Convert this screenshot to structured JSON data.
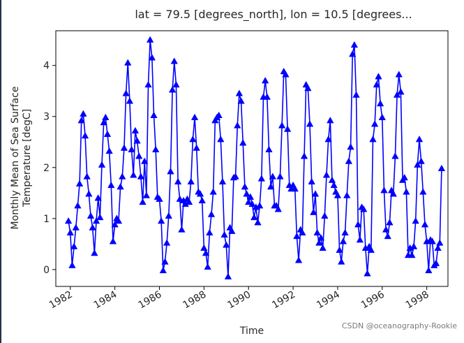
{
  "chart_data": {
    "type": "line",
    "title": "lat = 79.5 [degrees_north], lon = 10.5 [degrees...",
    "xlabel": "Time",
    "ylabel_lines": [
      "Monthly Mean of Sea Surface",
      "Temperature [degC]"
    ],
    "xlim": [
      1981.35,
      1998.95
    ],
    "ylim": [
      -0.33,
      4.68
    ],
    "x_ticks": [
      1982,
      1984,
      1986,
      1988,
      1990,
      1992,
      1994,
      1996,
      1998
    ],
    "x_tick_labels": [
      "1982",
      "1984",
      "1986",
      "1988",
      "1990",
      "1992",
      "1994",
      "1996",
      "1998"
    ],
    "y_ticks": [
      0,
      1,
      2,
      3,
      4
    ],
    "y_tick_labels": [
      "0",
      "1",
      "2",
      "3",
      "4"
    ],
    "series": [
      {
        "name": "sst",
        "color": "#0000ff",
        "marker": "triangle-up",
        "start_year": 1981.9167,
        "step": 0.08333,
        "values": [
          0.95,
          0.72,
          0.08,
          0.45,
          0.82,
          1.25,
          1.68,
          2.92,
          3.05,
          2.62,
          1.82,
          1.48,
          1.05,
          0.82,
          0.32,
          0.95,
          1.4,
          1.02,
          2.05,
          2.88,
          2.98,
          2.65,
          2.32,
          1.65,
          0.55,
          0.88,
          1.0,
          0.95,
          1.62,
          1.82,
          2.38,
          3.45,
          4.05,
          3.3,
          2.35,
          1.85,
          2.72,
          2.52,
          2.22,
          1.82,
          1.32,
          2.12,
          1.45,
          3.62,
          4.5,
          4.15,
          3.02,
          2.35,
          1.42,
          1.38,
          0.95,
          -0.02,
          0.15,
          0.52,
          1.05,
          1.92,
          3.52,
          4.08,
          3.62,
          1.72,
          1.38,
          0.78,
          1.35,
          1.28,
          1.38,
          1.32,
          1.72,
          2.55,
          2.98,
          2.38,
          1.52,
          1.48,
          1.35,
          0.42,
          0.32,
          0.05,
          0.72,
          1.08,
          1.52,
          2.92,
          2.98,
          3.02,
          2.55,
          1.72,
          0.68,
          0.48,
          -0.14,
          0.82,
          0.75,
          1.8,
          1.82,
          2.82,
          3.45,
          3.3,
          2.48,
          1.62,
          1.48,
          1.32,
          1.42,
          1.28,
          1.02,
          1.22,
          0.92,
          1.25,
          1.78,
          3.38,
          3.7,
          3.38,
          2.35,
          1.62,
          1.82,
          1.25,
          1.25,
          1.18,
          1.82,
          2.82,
          3.88,
          3.82,
          2.75,
          1.65,
          1.58,
          1.65,
          1.58,
          0.65,
          0.18,
          0.78,
          0.72,
          2.22,
          3.62,
          3.55,
          2.85,
          1.72,
          1.12,
          1.48,
          0.72,
          0.52,
          0.62,
          0.42,
          1.05,
          1.85,
          2.55,
          2.92,
          1.75,
          1.65,
          1.52,
          1.45,
          0.38,
          0.15,
          0.55,
          0.72,
          1.45,
          2.12,
          2.4,
          4.22,
          4.4,
          3.42,
          0.88,
          0.58,
          1.22,
          1.18,
          0.42,
          -0.08,
          0.45,
          0.38,
          2.55,
          2.85,
          3.62,
          3.78,
          3.25,
          2.98,
          1.55,
          0.78,
          0.65,
          0.92,
          1.55,
          1.48,
          2.22,
          3.42,
          3.82,
          3.48,
          1.75,
          1.8,
          1.52,
          0.28,
          0.42,
          0.28,
          0.45,
          0.95,
          2.05,
          2.55,
          2.12,
          1.52,
          0.88,
          0.55,
          -0.02,
          0.58,
          0.55,
          0.08,
          0.12,
          0.42,
          0.52,
          1.98
        ]
      }
    ]
  },
  "watermark": "CSDN @oceanography-Rookie"
}
